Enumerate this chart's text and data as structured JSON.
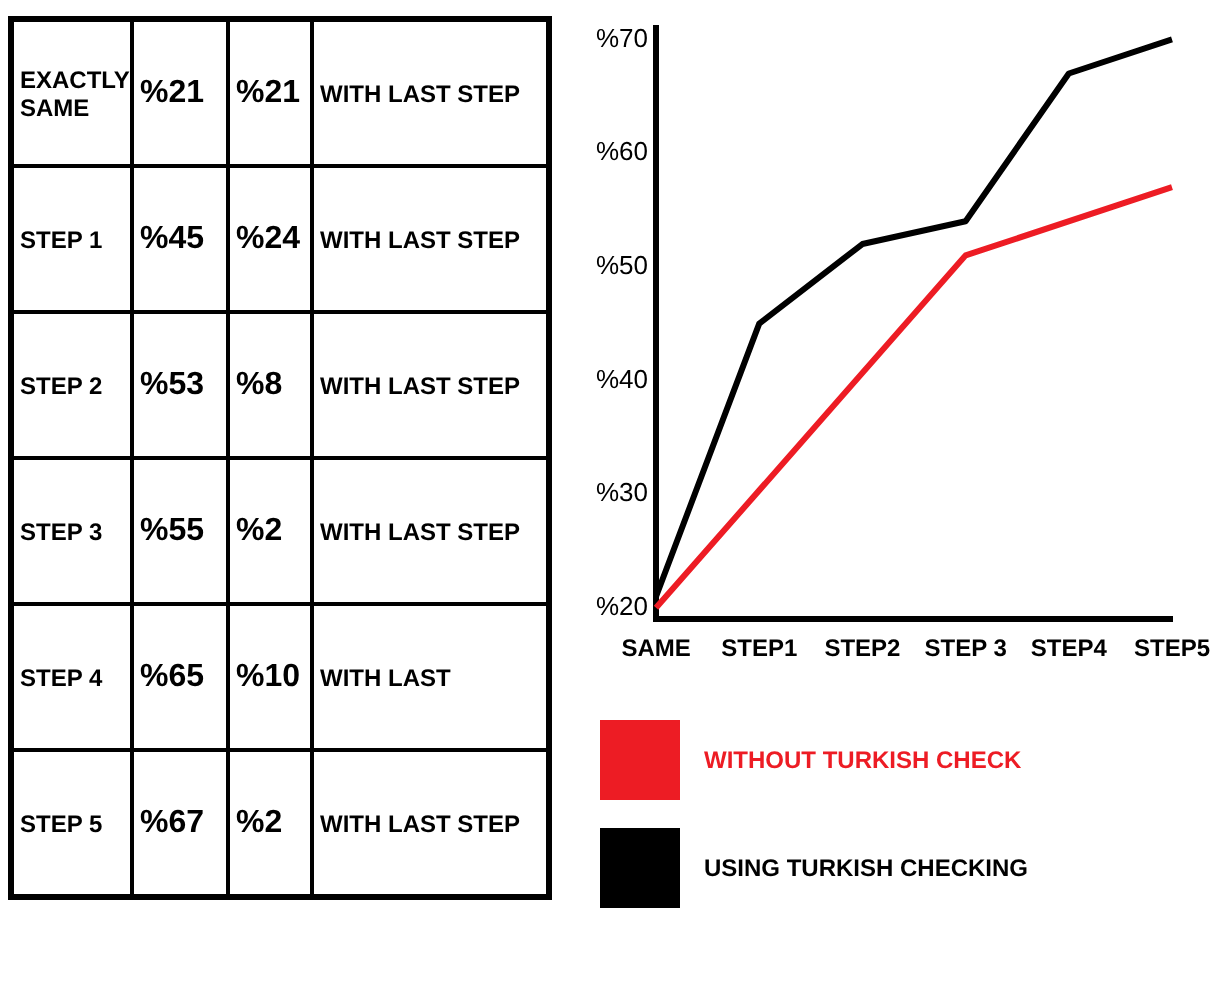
{
  "chart_data": [
    {
      "type": "other",
      "annotations": [
        "EXACTLY SAME",
        "%21",
        "%21",
        "WITH LAST STEP",
        "STEP 1",
        "%45",
        "%24",
        "WITH LAST STEP",
        "STEP 2",
        "%53",
        "%8",
        "WITH LAST STEP",
        "STEP 3",
        "%55",
        "%2",
        "WITH LAST STEP",
        "STEP 4",
        "%65",
        "%10",
        "WITH LAST",
        "STEP 5",
        "%67",
        "%2",
        "WITH LAST STEP"
      ]
    },
    {
      "type": "line",
      "categories": [
        "SAME",
        "STEP1",
        "STEP2",
        "STEP 3",
        "STEP4",
        "STEP5"
      ],
      "series": [
        {
          "name": "WITHOUT TURKISH CHECK",
          "color": "#ed1c24",
          "values": [
            20,
            null,
            null,
            51,
            null,
            57
          ]
        },
        {
          "name": "USING TURKISH CHECKING",
          "color": "#000000",
          "values": [
            21,
            45,
            52,
            54,
            67,
            70
          ]
        }
      ],
      "ylim": [
        19,
        71
      ],
      "yticks": [
        {
          "value": 20,
          "label": "%20"
        },
        {
          "value": 30,
          "label": "%30"
        },
        {
          "value": 40,
          "label": "%40"
        },
        {
          "value": 50,
          "label": "%50"
        },
        {
          "value": 60,
          "label": "%60"
        },
        {
          "value": 70,
          "label": "%70"
        }
      ],
      "grid": false,
      "legend": "bottom",
      "marker": "none",
      "line_style": "solid"
    }
  ]
}
